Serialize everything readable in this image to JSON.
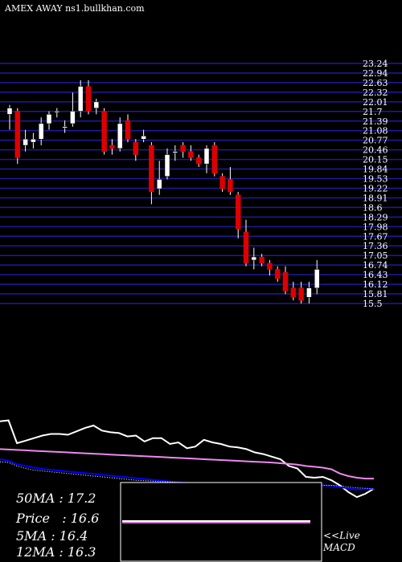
{
  "header": {
    "title": "AMEX  AWAY ns1.bullkhan.com"
  },
  "stats": {
    "ma50": "50MA : 17.2",
    "price": "Price   : 16.6",
    "ma5": "5MA : 16.4",
    "ma12": "12MA : 16.3"
  },
  "macd_panel": {
    "live_label": "<<Live",
    "macd_label": "MACD"
  },
  "colors": {
    "background": "#000000",
    "grid": "#1c1c9c",
    "up_candle": "#ffffff",
    "down_candle": "#dd0000",
    "ma_short": "#ffffff",
    "ma_mid": "#ee88ee",
    "ma_long": "#0000ff",
    "ma_dotted": "#ffffff",
    "macd_line": "#ffffff",
    "macd_signal": "#cc77cc"
  },
  "chart_data": [
    {
      "type": "candlestick",
      "title": "",
      "ylim": [
        15.5,
        23.24
      ],
      "grid": true,
      "y_ticks": [
        "23.24",
        "22.94",
        "22.63",
        "22.32",
        "22.01",
        "21.7",
        "21.39",
        "21.08",
        "20.77",
        "20.46",
        "20.15",
        "19.84",
        "19.53",
        "19.22",
        "18.91",
        "18.6",
        "18.29",
        "17.98",
        "17.67",
        "17.36",
        "17.05",
        "16.74",
        "16.43",
        "16.12",
        "15.81",
        "15.5"
      ],
      "candles": [
        {
          "o": 21.6,
          "h": 21.9,
          "l": 21.1,
          "c": 21.8
        },
        {
          "o": 21.7,
          "h": 21.8,
          "l": 20.0,
          "c": 20.2
        },
        {
          "o": 20.6,
          "h": 21.1,
          "l": 20.4,
          "c": 20.8
        },
        {
          "o": 20.7,
          "h": 21.0,
          "l": 20.5,
          "c": 20.8
        },
        {
          "o": 20.8,
          "h": 21.5,
          "l": 20.6,
          "c": 21.3
        },
        {
          "o": 21.3,
          "h": 21.7,
          "l": 21.1,
          "c": 21.6
        },
        {
          "o": 21.7,
          "h": 21.8,
          "l": 21.5,
          "c": 21.7
        },
        {
          "o": 21.2,
          "h": 21.4,
          "l": 21.0,
          "c": 21.2
        },
        {
          "o": 21.3,
          "h": 22.3,
          "l": 21.2,
          "c": 21.7
        },
        {
          "o": 21.7,
          "h": 22.7,
          "l": 21.5,
          "c": 22.5
        },
        {
          "o": 22.5,
          "h": 22.7,
          "l": 21.6,
          "c": 21.7
        },
        {
          "o": 21.8,
          "h": 22.1,
          "l": 21.6,
          "c": 22.0
        },
        {
          "o": 21.7,
          "h": 21.8,
          "l": 20.3,
          "c": 20.4
        },
        {
          "o": 20.6,
          "h": 20.8,
          "l": 20.3,
          "c": 20.5
        },
        {
          "o": 20.5,
          "h": 21.5,
          "l": 20.4,
          "c": 21.3
        },
        {
          "o": 21.4,
          "h": 21.6,
          "l": 20.7,
          "c": 20.8
        },
        {
          "o": 20.7,
          "h": 20.8,
          "l": 20.1,
          "c": 20.3
        },
        {
          "o": 20.8,
          "h": 21.1,
          "l": 20.7,
          "c": 20.9
        },
        {
          "o": 20.6,
          "h": 20.7,
          "l": 18.7,
          "c": 19.1
        },
        {
          "o": 19.2,
          "h": 20.1,
          "l": 19.0,
          "c": 19.5
        },
        {
          "o": 19.6,
          "h": 20.5,
          "l": 19.5,
          "c": 20.3
        },
        {
          "o": 20.4,
          "h": 20.6,
          "l": 20.1,
          "c": 20.4
        },
        {
          "o": 20.6,
          "h": 20.7,
          "l": 20.2,
          "c": 20.4
        },
        {
          "o": 20.4,
          "h": 20.6,
          "l": 20.1,
          "c": 20.2
        },
        {
          "o": 20.2,
          "h": 20.3,
          "l": 19.9,
          "c": 20.0
        },
        {
          "o": 20.0,
          "h": 20.6,
          "l": 19.7,
          "c": 20.5
        },
        {
          "o": 20.6,
          "h": 20.7,
          "l": 19.6,
          "c": 19.7
        },
        {
          "o": 19.6,
          "h": 19.7,
          "l": 19.1,
          "c": 19.2
        },
        {
          "o": 19.5,
          "h": 19.9,
          "l": 19.0,
          "c": 19.1
        },
        {
          "o": 19.0,
          "h": 19.1,
          "l": 17.6,
          "c": 17.9
        },
        {
          "o": 17.8,
          "h": 18.2,
          "l": 16.7,
          "c": 16.8
        },
        {
          "o": 16.9,
          "h": 17.3,
          "l": 16.6,
          "c": 17.0
        },
        {
          "o": 17.0,
          "h": 17.1,
          "l": 16.7,
          "c": 16.8
        },
        {
          "o": 16.8,
          "h": 16.9,
          "l": 16.4,
          "c": 16.6
        },
        {
          "o": 16.6,
          "h": 16.7,
          "l": 16.2,
          "c": 16.3
        },
        {
          "o": 16.5,
          "h": 16.7,
          "l": 15.8,
          "c": 15.9
        },
        {
          "o": 16.0,
          "h": 16.2,
          "l": 15.6,
          "c": 15.7
        },
        {
          "o": 16.0,
          "h": 16.2,
          "l": 15.5,
          "c": 15.6
        },
        {
          "o": 15.7,
          "h": 16.2,
          "l": 15.5,
          "c": 16.0
        },
        {
          "o": 16.0,
          "h": 16.9,
          "l": 15.8,
          "c": 16.6
        }
      ]
    },
    {
      "type": "line",
      "title": "",
      "ylim": [
        0,
        100
      ],
      "series": [
        {
          "color": "#ffffff",
          "values": [
            86,
            87,
            60,
            63,
            66,
            69,
            71,
            71,
            70,
            74,
            78,
            81,
            75,
            73,
            72,
            68,
            69,
            62,
            66,
            66,
            59,
            61,
            54,
            56,
            64,
            61,
            59,
            56,
            55,
            53,
            49,
            47,
            44,
            41,
            33,
            30,
            20,
            19,
            20,
            16,
            10,
            2,
            -4,
            0,
            6
          ]
        },
        {
          "color": "#ee88ee",
          "values": [
            53,
            52.5,
            52,
            51.5,
            51,
            50.5,
            50,
            49.5,
            49,
            48.5,
            48,
            47.5,
            47,
            46.5,
            46,
            45.5,
            45,
            44.5,
            44,
            43.5,
            43,
            42.5,
            42,
            41.5,
            41,
            40.5,
            40,
            39.5,
            39,
            38.5,
            38,
            37.5,
            37,
            36.2,
            35.5,
            34.5,
            33,
            32,
            31,
            29,
            24,
            21,
            19,
            18,
            18
          ]
        },
        {
          "color": "#0000ff",
          "values": [
            41,
            39,
            35,
            33,
            31,
            29.5,
            28.5,
            27.5,
            26.5,
            25.5,
            24.5,
            23.5,
            22.5,
            21.5,
            20.5,
            19.5,
            18.5,
            17.5,
            16.5,
            15.5,
            14.5,
            13.5,
            13,
            12.5,
            12,
            11.5,
            11,
            10.8,
            10.5,
            10.3,
            10.1,
            10,
            10,
            10,
            10,
            10,
            10,
            10,
            10,
            9.5,
            8,
            6.5,
            5,
            5.5,
            6
          ]
        },
        {
          "color": "#ffffff",
          "dotted": true,
          "values": [
            38,
            37,
            33,
            30,
            28,
            27,
            26,
            25,
            24,
            23,
            22,
            21,
            20,
            19,
            18,
            17,
            16,
            15.5,
            15,
            14.5,
            14,
            13.5,
            13,
            12.5,
            12,
            11.8,
            11.5,
            11.3,
            11,
            10.8,
            10.6,
            10.5,
            10.4,
            10.3,
            10.2,
            10.1,
            10,
            10,
            10,
            10,
            9.5,
            8,
            7,
            6.5,
            6
          ]
        }
      ]
    },
    {
      "type": "line",
      "title": "",
      "series": [
        {
          "color": "#ffffff",
          "values": [
            1.0,
            1.0,
            1.0,
            1.0,
            1.0,
            1.0,
            1.0,
            1.0,
            1.0,
            1.0,
            1.0,
            1.0,
            1.0,
            1.0,
            1.0,
            1.0,
            1.0,
            1.0,
            1.0,
            1.0,
            1.0,
            1.0,
            1.0
          ]
        },
        {
          "color": "#cc77cc",
          "values": [
            0.95,
            0.95,
            0.95,
            0.95,
            0.95,
            0.95,
            0.95,
            0.95,
            0.95,
            0.95,
            0.95,
            0.95,
            0.95,
            0.95,
            0.95,
            0.95,
            0.95,
            0.95,
            0.95,
            0.95,
            0.95,
            0.95,
            0.95
          ]
        }
      ]
    }
  ]
}
